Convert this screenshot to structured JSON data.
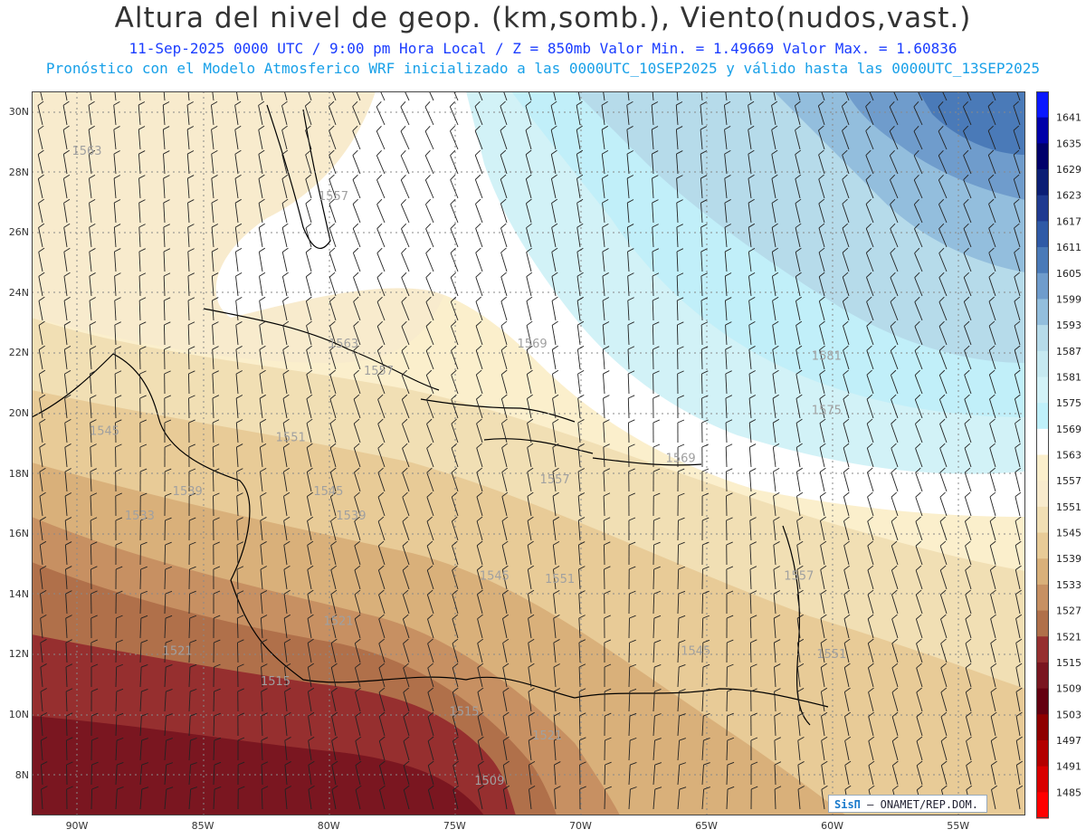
{
  "header": {
    "title": "Altura del nivel de geop. (km,somb.), Viento(nudos,vast.)",
    "line1": "11-Sep-2025  0000 UTC / 9:00 pm Hora Local / Z = 850mb    Valor Min. = 1.49669  Valor Max. = 1.60836",
    "line2": "Pronóstico con el Modelo Atmosferico WRF inicializado a las 0000UTC_10SEP2025 y válido hasta las  0000UTC_13SEP2025"
  },
  "map": {
    "lat_labels": [
      "30N",
      "28N",
      "26N",
      "24N",
      "22N",
      "20N",
      "18N",
      "16N",
      "14N",
      "12N",
      "10N",
      "8N"
    ],
    "lon_labels": [
      "90W",
      "85W",
      "80W",
      "75W",
      "70W",
      "65W",
      "60W",
      "55W"
    ],
    "contour_labels": [
      {
        "text": "1563",
        "lat": 28.6,
        "lon": -90.2
      },
      {
        "text": "1557",
        "lat": 27.1,
        "lon": -80.4
      },
      {
        "text": "1563",
        "lat": 22.2,
        "lon": -80.0
      },
      {
        "text": "1557",
        "lat": 21.3,
        "lon": -78.6
      },
      {
        "text": "1569",
        "lat": 22.2,
        "lon": -72.5
      },
      {
        "text": "1581",
        "lat": 21.8,
        "lon": -60.8
      },
      {
        "text": "1575",
        "lat": 20.0,
        "lon": -60.8
      },
      {
        "text": "1569",
        "lat": 18.4,
        "lon": -66.6
      },
      {
        "text": "1557",
        "lat": 17.7,
        "lon": -71.6
      },
      {
        "text": "1545",
        "lat": 19.3,
        "lon": -89.5
      },
      {
        "text": "1551",
        "lat": 19.1,
        "lon": -82.1
      },
      {
        "text": "1539",
        "lat": 17.3,
        "lon": -86.2
      },
      {
        "text": "1545",
        "lat": 17.3,
        "lon": -80.6
      },
      {
        "text": "1533",
        "lat": 16.5,
        "lon": -88.1
      },
      {
        "text": "1539",
        "lat": 16.5,
        "lon": -79.7
      },
      {
        "text": "1545",
        "lat": 14.5,
        "lon": -74.0
      },
      {
        "text": "1551",
        "lat": 14.4,
        "lon": -71.4
      },
      {
        "text": "1557",
        "lat": 14.5,
        "lon": -61.9
      },
      {
        "text": "1521",
        "lat": 13.0,
        "lon": -80.2
      },
      {
        "text": "1521",
        "lat": 12.0,
        "lon": -86.6
      },
      {
        "text": "1515",
        "lat": 11.0,
        "lon": -82.7
      },
      {
        "text": "1545",
        "lat": 12.0,
        "lon": -66.0
      },
      {
        "text": "1551",
        "lat": 11.9,
        "lon": -60.6
      },
      {
        "text": "1515",
        "lat": 10.0,
        "lon": -75.2
      },
      {
        "text": "1521",
        "lat": 9.2,
        "lon": -71.9
      },
      {
        "text": "1509",
        "lat": 7.7,
        "lon": -74.2
      }
    ]
  },
  "colorbar": {
    "labels": [
      "1641",
      "1635",
      "1629",
      "1623",
      "1617",
      "1611",
      "1605",
      "1599",
      "1593",
      "1587",
      "1581",
      "1575",
      "1569",
      "1563",
      "1557",
      "1551",
      "1545",
      "1539",
      "1533",
      "1527",
      "1521",
      "1515",
      "1509",
      "1503",
      "1497",
      "1491",
      "1485"
    ],
    "colors": [
      "#0a18ff",
      "#0000a8",
      "#00006a",
      "#0b1e75",
      "#1f3a90",
      "#2f5aa6",
      "#4a7ab8",
      "#6f9ccc",
      "#93bedd",
      "#b6dbea",
      "#c6e9f1",
      "#d2f2f7",
      "#bff0fa",
      "#ffffff",
      "#fbefcc",
      "#f8ebcd",
      "#f1dfb4",
      "#e8cb97",
      "#d9b07a",
      "#c79062",
      "#b0704a",
      "#962f2f",
      "#7a1620",
      "#640010",
      "#8e0000",
      "#b30000",
      "#d80000",
      "#ff0000"
    ]
  },
  "credit": {
    "brand": "SisΠ",
    "text": "– ONAMET/REP.DOM."
  }
}
